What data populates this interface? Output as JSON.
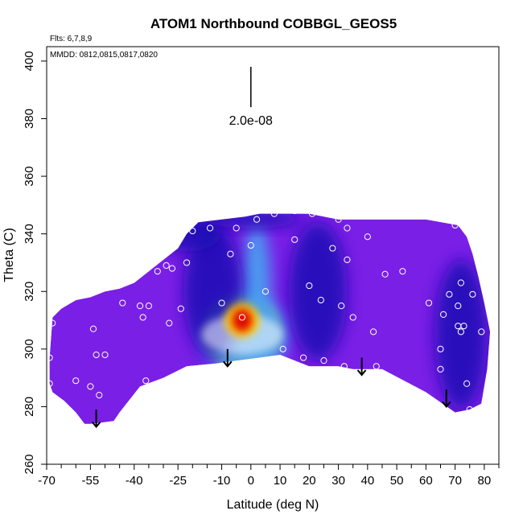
{
  "chart_data": {
    "type": "heatmap",
    "title": "ATOM1 Northbound COBBGL_GEOS5",
    "flights_note": "Flts: 6,7,8,9",
    "dates_note": "MMDD: 0812,0815,0817,0820",
    "xlabel": "Latitude (deg N)",
    "ylabel": "Theta (C)",
    "xlim": [
      -70,
      85
    ],
    "ylim": [
      260,
      405
    ],
    "x_ticks": [
      -70,
      -55,
      -40,
      -25,
      -10,
      0,
      10,
      20,
      30,
      40,
      50,
      60,
      70,
      80
    ],
    "x_minor_ticks": [
      -65,
      -60,
      -50,
      -45,
      -35,
      -30,
      -20,
      -15,
      -5,
      5,
      15,
      25,
      35,
      45,
      55,
      65,
      75,
      85
    ],
    "y_ticks": [
      260,
      280,
      300,
      320,
      340,
      360,
      380,
      400
    ],
    "scale_bar": {
      "label": "2.0e-08",
      "x": 0,
      "y_top": 398,
      "y_bottom": 384
    },
    "colors": {
      "background_field": "#7a1fe6",
      "low": "#1a0fb4",
      "mid": "#4aa0f0",
      "high": "#ffd000",
      "peak": "#e00000"
    },
    "field_top_boundary": [
      [
        -69,
        297
      ],
      [
        -68,
        311
      ],
      [
        -65,
        314
      ],
      [
        -60,
        317
      ],
      [
        -55,
        318
      ],
      [
        -50,
        320
      ],
      [
        -45,
        321
      ],
      [
        -40,
        323
      ],
      [
        -35,
        327
      ],
      [
        -30,
        331
      ],
      [
        -25,
        335
      ],
      [
        -22,
        340
      ],
      [
        -18,
        344
      ],
      [
        -10,
        345
      ],
      [
        -2,
        346
      ],
      [
        3,
        347
      ],
      [
        10,
        347
      ],
      [
        20,
        347
      ],
      [
        30,
        345
      ],
      [
        40,
        345
      ],
      [
        60,
        345
      ],
      [
        71,
        343
      ],
      [
        74,
        339
      ],
      [
        76,
        333
      ],
      [
        78,
        325
      ],
      [
        80,
        316
      ],
      [
        82,
        306
      ],
      [
        80,
        300
      ]
    ],
    "field_bottom_boundary": [
      [
        -69,
        297
      ],
      [
        -69,
        288
      ],
      [
        -68,
        285
      ],
      [
        -64,
        282
      ],
      [
        -60,
        278
      ],
      [
        -57,
        274
      ],
      [
        -55,
        274
      ],
      [
        -47,
        275
      ],
      [
        -45,
        278
      ],
      [
        -38,
        287
      ],
      [
        -30,
        290
      ],
      [
        -22,
        294
      ],
      [
        -12,
        295
      ],
      [
        -5,
        296
      ],
      [
        10,
        298
      ],
      [
        20,
        294
      ],
      [
        30,
        294
      ],
      [
        35,
        293
      ],
      [
        45,
        293
      ],
      [
        60,
        285
      ],
      [
        70,
        278
      ],
      [
        75,
        279
      ],
      [
        79,
        281
      ],
      [
        81,
        293
      ],
      [
        82,
        306
      ]
    ],
    "blobs": [
      {
        "x": -3,
        "y": 309,
        "rx": 8,
        "ry": 8,
        "level": "peak"
      },
      {
        "x": -3,
        "y": 306,
        "rx": 13,
        "ry": 12,
        "level": "high"
      },
      {
        "x": -2,
        "y": 305,
        "rx": 15,
        "ry": 14,
        "level": "mid"
      },
      {
        "x": 2,
        "y": 320,
        "rx": 5,
        "ry": 24,
        "level": "mid"
      },
      {
        "x": 23,
        "y": 320,
        "rx": 10,
        "ry": 24,
        "level": "low"
      },
      {
        "x": -13,
        "y": 320,
        "rx": 10,
        "ry": 23,
        "level": "low"
      },
      {
        "x": 72,
        "y": 305,
        "rx": 9,
        "ry": 26,
        "level": "low"
      },
      {
        "x": -22,
        "y": 340,
        "rx": 12,
        "ry": 6,
        "level": "low"
      },
      {
        "x": 0,
        "y": 345,
        "rx": 18,
        "ry": 3,
        "level": "low"
      }
    ],
    "sample_points": [
      [
        -68,
        309
      ],
      [
        -69,
        297
      ],
      [
        -69,
        288
      ],
      [
        -60,
        289
      ],
      [
        -54,
        307
      ],
      [
        -53,
        298
      ],
      [
        -50,
        298
      ],
      [
        -55,
        287
      ],
      [
        -52,
        284
      ],
      [
        -44,
        316
      ],
      [
        -38,
        315
      ],
      [
        -35,
        315
      ],
      [
        -37,
        311
      ],
      [
        -36,
        289
      ],
      [
        -28,
        309
      ],
      [
        -24,
        314
      ],
      [
        -32,
        327
      ],
      [
        -29,
        329
      ],
      [
        -27,
        328
      ],
      [
        -22,
        330
      ],
      [
        -20,
        341
      ],
      [
        -14,
        342
      ],
      [
        -10,
        316
      ],
      [
        -7,
        333
      ],
      [
        -5,
        342
      ],
      [
        -3,
        311
      ],
      [
        0,
        336
      ],
      [
        2,
        345
      ],
      [
        5,
        320
      ],
      [
        8,
        347
      ],
      [
        11,
        300
      ],
      [
        15,
        338
      ],
      [
        15,
        348
      ],
      [
        18,
        297
      ],
      [
        20,
        322
      ],
      [
        21,
        347
      ],
      [
        24,
        317
      ],
      [
        25,
        296
      ],
      [
        28,
        335
      ],
      [
        30,
        345
      ],
      [
        31,
        315
      ],
      [
        32,
        294
      ],
      [
        33,
        331
      ],
      [
        33,
        342
      ],
      [
        35,
        311
      ],
      [
        40,
        339
      ],
      [
        43,
        294
      ],
      [
        42,
        306
      ],
      [
        46,
        326
      ],
      [
        52,
        327
      ],
      [
        61,
        316
      ],
      [
        65,
        300
      ],
      [
        65,
        293
      ],
      [
        66,
        312
      ],
      [
        68,
        319
      ],
      [
        70,
        343
      ],
      [
        71,
        315
      ],
      [
        71,
        308
      ],
      [
        72,
        323
      ],
      [
        72,
        306
      ],
      [
        73,
        308
      ],
      [
        74,
        288
      ],
      [
        75,
        279
      ],
      [
        76,
        319
      ],
      [
        79,
        306
      ]
    ],
    "arrows": [
      {
        "x": -53,
        "y_from": 279,
        "y_to": 273
      },
      {
        "x": -8,
        "y_from": 300,
        "y_to": 294
      },
      {
        "x": 38,
        "y_from": 297,
        "y_to": 291
      },
      {
        "x": 67,
        "y_from": 286,
        "y_to": 280
      }
    ]
  }
}
